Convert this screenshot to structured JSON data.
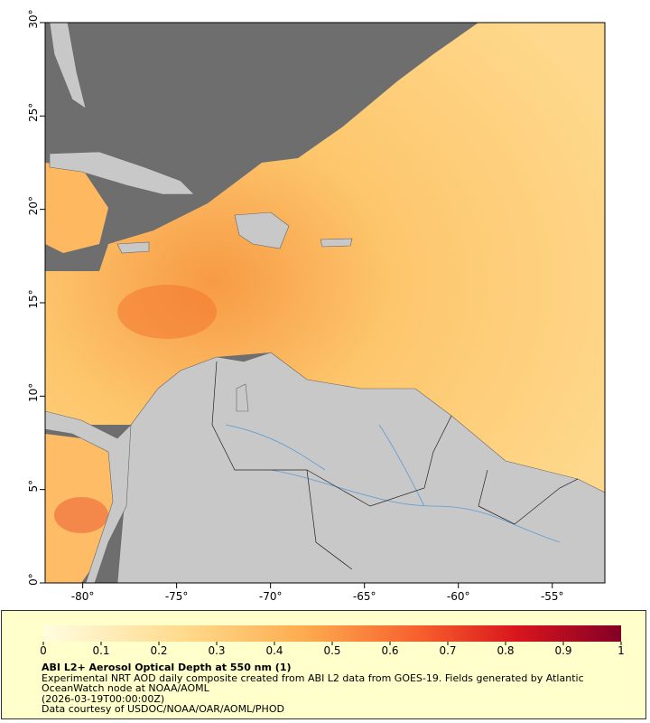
{
  "map": {
    "xlim": [
      -82,
      -52.2
    ],
    "ylim": [
      0,
      30
    ],
    "xticks": [
      {
        "value": -80,
        "label": "-80°"
      },
      {
        "value": -75,
        "label": "-75°"
      },
      {
        "value": -70,
        "label": "-70°"
      },
      {
        "value": -65,
        "label": "-65°"
      },
      {
        "value": -60,
        "label": "-60°"
      },
      {
        "value": -55,
        "label": "-55°"
      }
    ],
    "yticks": [
      {
        "value": 0,
        "label": "0°"
      },
      {
        "value": 5,
        "label": "5°"
      },
      {
        "value": 10,
        "label": "10°"
      },
      {
        "value": 15,
        "label": "15°"
      },
      {
        "value": 20,
        "label": "20°"
      },
      {
        "value": 25,
        "label": "25°"
      },
      {
        "value": 30,
        "label": "30°"
      }
    ]
  },
  "colorbar": {
    "range": [
      0,
      1
    ],
    "ticks": [
      0,
      0.1,
      0.2,
      0.3,
      0.4,
      0.5,
      0.6,
      0.7,
      0.8,
      0.9,
      1
    ],
    "title": "ABI L2+ Aerosol Optical Depth at 550 nm (1)"
  },
  "caption": {
    "description": "Experimental NRT AOD daily composite created from ABI L2 data from GOES-19. Fields generated by Atlantic OceanWatch node at NOAA/AOML",
    "time": "(2026-03-19T00:00:00Z)",
    "credit": "Data courtesy of USDOC/NOAA/OAR/AOML/PHOD"
  }
}
